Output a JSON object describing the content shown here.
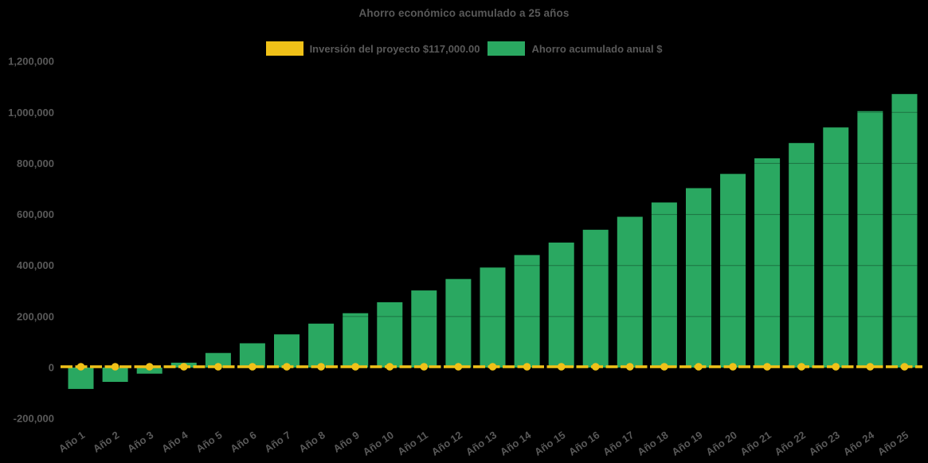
{
  "chart": {
    "title": "Ahorro económico acumulado a 25 años"
  },
  "legend": {
    "investment_label": "Inversión del proyecto $117,000.00",
    "savings_label": "Ahorro acumulado anual $"
  },
  "colors": {
    "investment_yellow": "#f0c118",
    "savings_green": "#2aa861",
    "text_gray": "#595959",
    "background": "#000000"
  },
  "chart_data": {
    "type": "bar",
    "title": "Ahorro económico acumulado a 25 años",
    "categories": [
      "Año 1",
      "Año 2",
      "Año 3",
      "Año 4",
      "Año 5",
      "Año 6",
      "Año 7",
      "Año 8",
      "Año 9",
      "Año 10",
      "Año 11",
      "Año 12",
      "Año 13",
      "Año 14",
      "Año 15",
      "Año 16",
      "Año 17",
      "Año 18",
      "Año 19",
      "Año 20",
      "Año 21",
      "Año 22",
      "Año 23",
      "Año 24",
      "Año 25"
    ],
    "series": [
      {
        "name": "Inversión del proyecto $117,000.00",
        "type": "line",
        "style": "dashed-with-markers",
        "color": "#f0c118",
        "values": [
          0,
          0,
          0,
          0,
          0,
          0,
          0,
          0,
          0,
          0,
          0,
          0,
          0,
          0,
          0,
          0,
          0,
          0,
          0,
          0,
          0,
          0,
          0,
          0,
          0
        ]
      },
      {
        "name": "Ahorro acumulado anual $",
        "type": "bar",
        "color": "#2aa861",
        "values": [
          -84000,
          -56000,
          -24000,
          19000,
          57000,
          95000,
          130000,
          172000,
          213000,
          256000,
          302000,
          347000,
          392000,
          441000,
          490000,
          540000,
          591000,
          647000,
          703000,
          759000,
          820000,
          880000,
          941000,
          1005000,
          1072000
        ]
      }
    ],
    "xlabel": "",
    "ylabel": "",
    "ylim": [
      -200000,
      1200000
    ],
    "ytick_step": 200000,
    "ytick_labels": [
      "1,200,000",
      "1,000,000",
      "800,000",
      "600,000",
      "400,000",
      "200,000",
      "0",
      "-200,000"
    ],
    "legend_position": "top",
    "grid": false,
    "x_label_rotation_deg": -34
  }
}
